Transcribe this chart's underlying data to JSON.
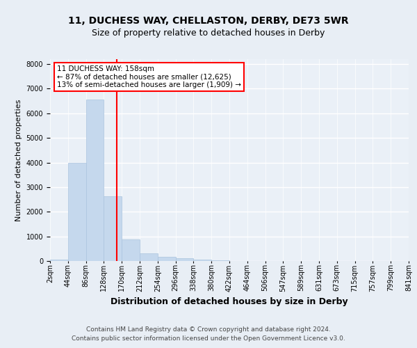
{
  "title1": "11, DUCHESS WAY, CHELLASTON, DERBY, DE73 5WR",
  "title2": "Size of property relative to detached houses in Derby",
  "xlabel": "Distribution of detached houses by size in Derby",
  "ylabel": "Number of detached properties",
  "bin_labels": [
    "2sqm",
    "44sqm",
    "86sqm",
    "128sqm",
    "170sqm",
    "212sqm",
    "254sqm",
    "296sqm",
    "338sqm",
    "380sqm",
    "422sqm",
    "464sqm",
    "506sqm",
    "547sqm",
    "589sqm",
    "631sqm",
    "673sqm",
    "715sqm",
    "757sqm",
    "799sqm",
    "841sqm"
  ],
  "bar_values": [
    50,
    3980,
    6550,
    2620,
    870,
    310,
    170,
    110,
    60,
    40,
    0,
    0,
    0,
    0,
    0,
    0,
    0,
    0,
    0,
    0
  ],
  "bar_color": "#c5d8ed",
  "bar_edge_color": "#aac4de",
  "vline_color": "red",
  "annotation_text": "11 DUCHESS WAY: 158sqm\n← 87% of detached houses are smaller (12,625)\n13% of semi-detached houses are larger (1,909) →",
  "annotation_box_color": "white",
  "annotation_box_edgecolor": "red",
  "ylim": [
    0,
    8200
  ],
  "yticks": [
    0,
    1000,
    2000,
    3000,
    4000,
    5000,
    6000,
    7000,
    8000
  ],
  "footnote1": "Contains HM Land Registry data © Crown copyright and database right 2024.",
  "footnote2": "Contains public sector information licensed under the Open Government Licence v3.0.",
  "bg_color": "#e8eef5",
  "plot_bg_color": "#eaf0f7",
  "grid_color": "white",
  "title_fontsize": 10,
  "subtitle_fontsize": 9,
  "xlabel_fontsize": 9,
  "ylabel_fontsize": 8,
  "tick_fontsize": 7,
  "footnote_fontsize": 6.5,
  "ann_fontsize": 7.5
}
